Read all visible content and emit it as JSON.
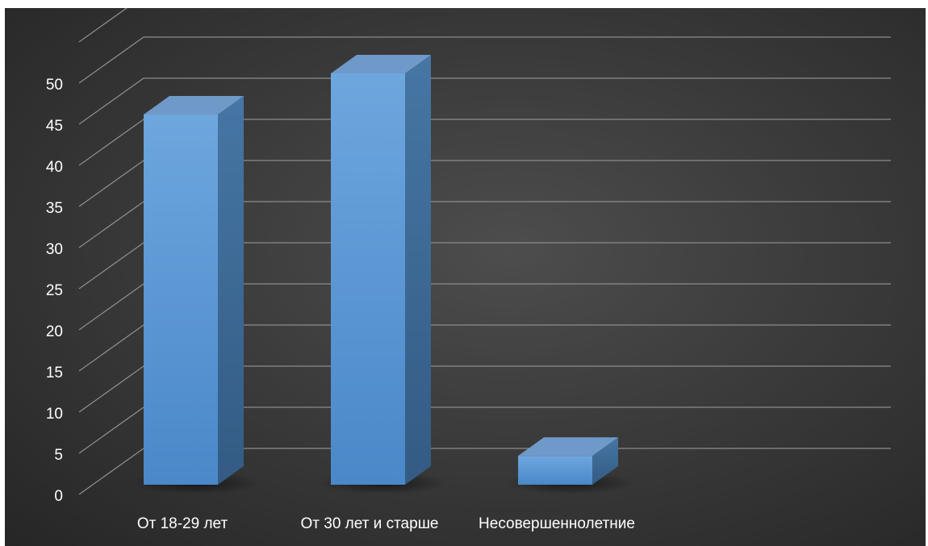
{
  "chart_data": {
    "type": "bar",
    "style": "3d-column",
    "title": "",
    "xlabel": "",
    "ylabel": "",
    "categories": [
      "От 18-29 лет",
      "От 30 лет и старше",
      "Несовершеннолетние"
    ],
    "values": [
      45,
      50,
      3.5
    ],
    "ylim": [
      0,
      50
    ],
    "ytick_step": 5,
    "yticks": [
      "0",
      "5",
      "10",
      "15",
      "20",
      "25",
      "30",
      "35",
      "40",
      "45",
      "50"
    ],
    "grid": true,
    "legend": "none",
    "colors": {
      "bar_front": "#5b9bd5",
      "bar_side": "#3f6f9c",
      "bar_top": "#6f99c8",
      "grid": "#8c8c8c",
      "background": "#3a3a3a",
      "text": "#ffffff"
    }
  }
}
